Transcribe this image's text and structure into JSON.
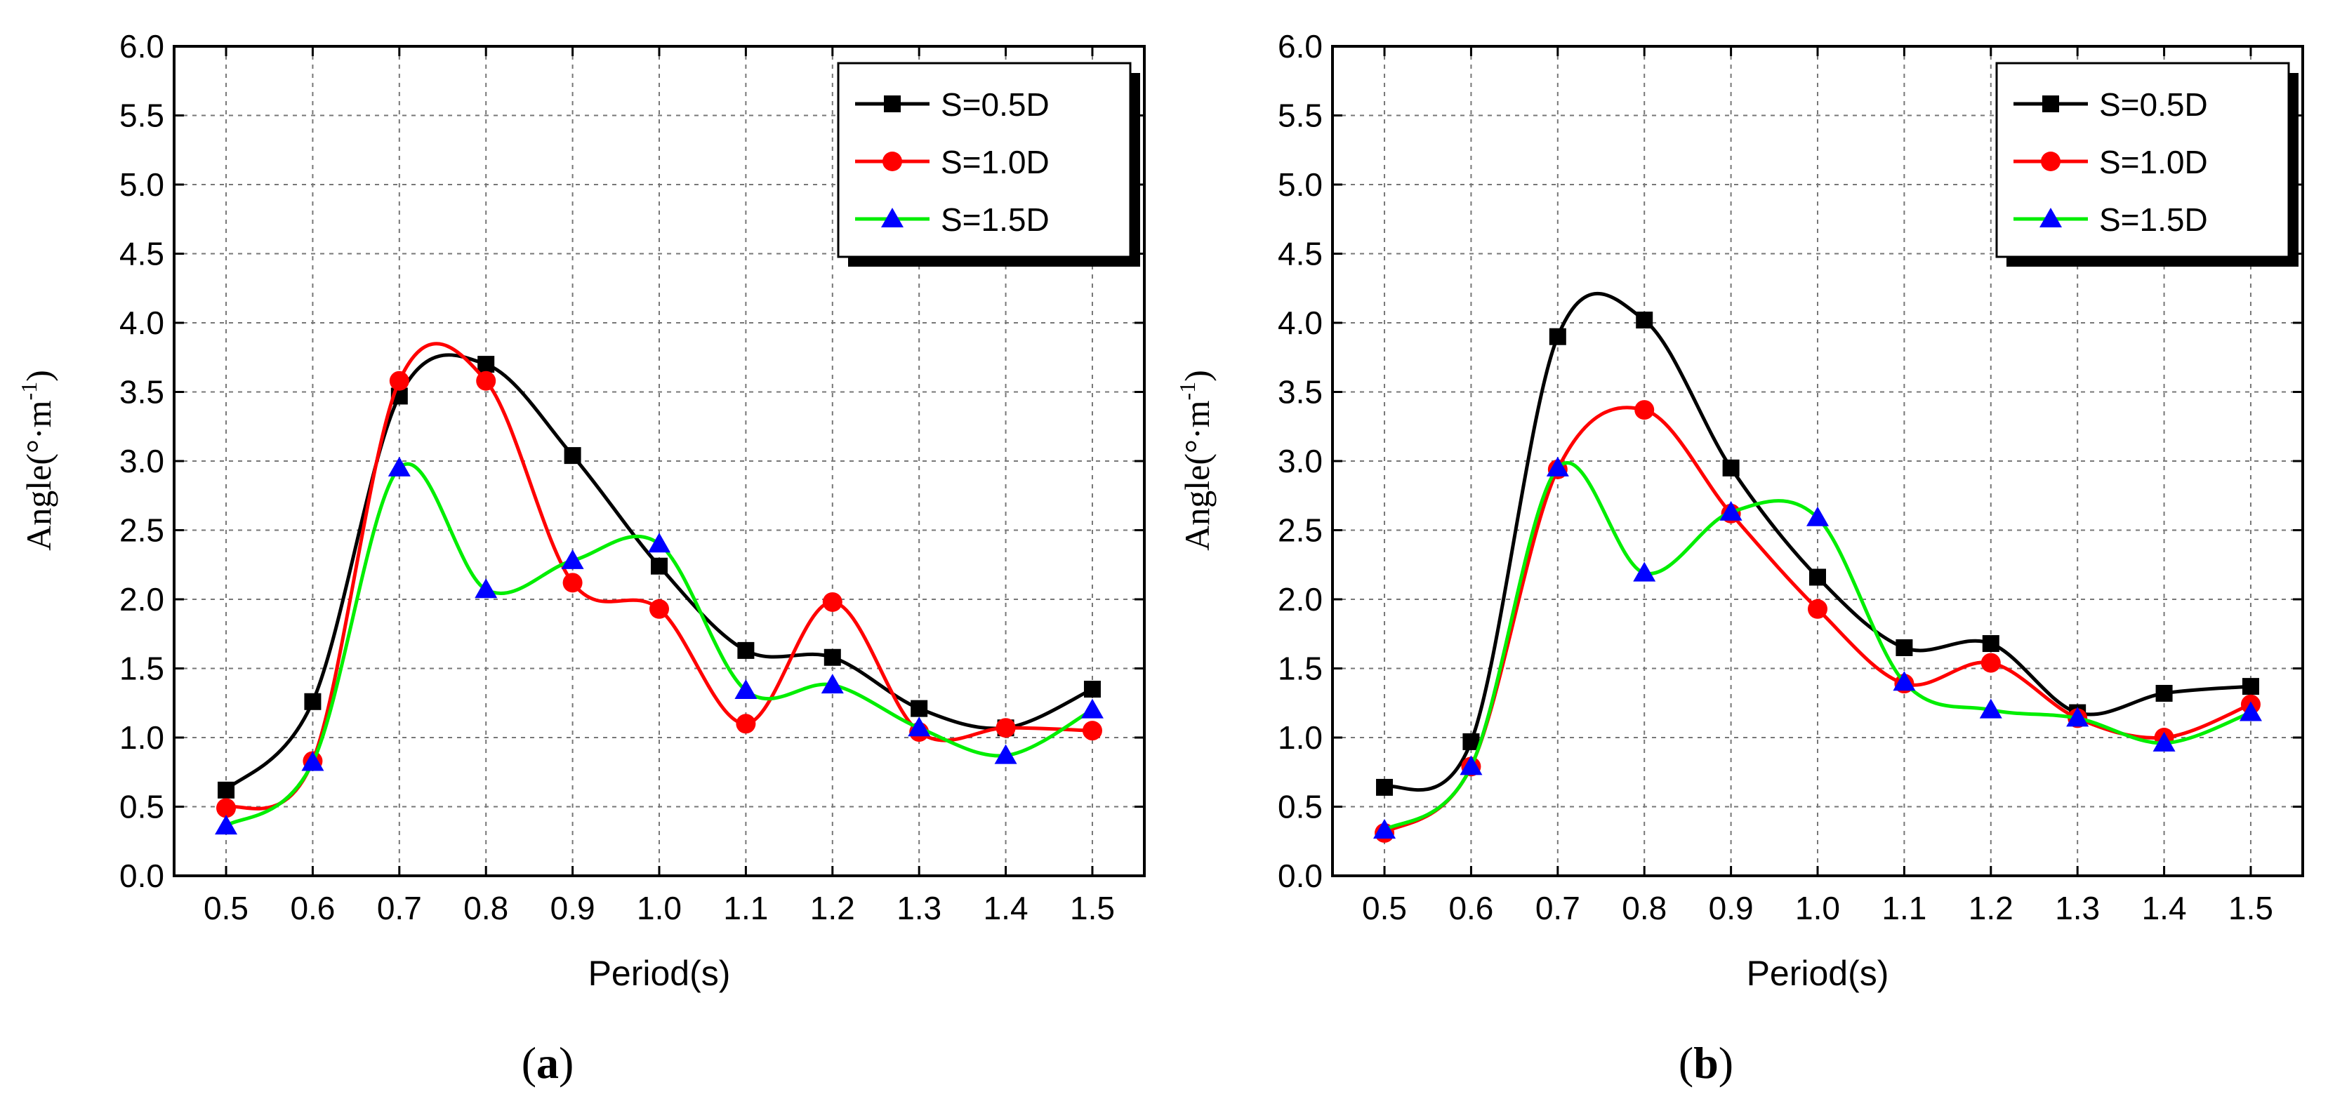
{
  "chart_data": [
    {
      "type": "line",
      "panel": "a",
      "caption_letter": "a",
      "xlabel": "Period(s)",
      "ylabel_base": "Angle(°·m",
      "ylabel_sup": "-1",
      "ylabel_close": ")",
      "x_ticks": [
        "0.5",
        "0.6",
        "0.7",
        "0.8",
        "0.9",
        "1.0",
        "1.1",
        "1.2",
        "1.3",
        "1.4",
        "1.5"
      ],
      "y_ticks": [
        "0.0",
        "0.5",
        "1.0",
        "1.5",
        "2.0",
        "2.5",
        "3.0",
        "3.5",
        "4.0",
        "4.5",
        "5.0",
        "5.5",
        "6.0"
      ],
      "xlim": [
        0.44,
        1.56
      ],
      "ylim": [
        0,
        6
      ],
      "grid": true,
      "legend_position": "top-right",
      "x": [
        0.5,
        0.6,
        0.7,
        0.8,
        0.9,
        1.0,
        1.1,
        1.2,
        1.3,
        1.4,
        1.5
      ],
      "series": [
        {
          "name": "S=0.5D",
          "color": "#000000",
          "marker": "square",
          "values": [
            0.62,
            1.26,
            3.47,
            3.7,
            3.04,
            2.24,
            1.63,
            1.58,
            1.21,
            1.07,
            1.35
          ]
        },
        {
          "name": "S=1.0D",
          "color": "#ff0000",
          "marker": "circle",
          "values": [
            0.49,
            0.83,
            3.58,
            3.58,
            2.12,
            1.93,
            1.1,
            1.98,
            1.04,
            1.07,
            1.05
          ]
        },
        {
          "name": "S=1.5D",
          "color": "#00ee00",
          "marker_color": "#0000ff",
          "marker": "triangle",
          "values": [
            0.36,
            0.82,
            2.95,
            2.07,
            2.28,
            2.4,
            1.34,
            1.38,
            1.07,
            0.87,
            1.2
          ]
        }
      ]
    },
    {
      "type": "line",
      "panel": "b",
      "caption_letter": "b",
      "xlabel": "Period(s)",
      "ylabel_base": "Angle(°·m",
      "ylabel_sup": "-1",
      "ylabel_close": ")",
      "x_ticks": [
        "0.5",
        "0.6",
        "0.7",
        "0.8",
        "0.9",
        "1.0",
        "1.1",
        "1.2",
        "1.3",
        "1.4",
        "1.5"
      ],
      "y_ticks": [
        "0.0",
        "0.5",
        "1.0",
        "1.5",
        "2.0",
        "2.5",
        "3.0",
        "3.5",
        "4.0",
        "4.5",
        "5.0",
        "5.5",
        "6.0"
      ],
      "xlim": [
        0.44,
        1.56
      ],
      "ylim": [
        0,
        6
      ],
      "grid": true,
      "legend_position": "top-right",
      "x": [
        0.5,
        0.6,
        0.7,
        0.8,
        0.9,
        1.0,
        1.1,
        1.2,
        1.3,
        1.4,
        1.5
      ],
      "series": [
        {
          "name": "S=0.5D",
          "color": "#000000",
          "marker": "square",
          "values": [
            0.64,
            0.97,
            3.9,
            4.02,
            2.95,
            2.16,
            1.65,
            1.68,
            1.18,
            1.32,
            1.37
          ]
        },
        {
          "name": "S=1.0D",
          "color": "#ff0000",
          "marker": "circle",
          "values": [
            0.31,
            0.79,
            2.94,
            3.37,
            2.62,
            1.93,
            1.39,
            1.54,
            1.14,
            1.0,
            1.24
          ]
        },
        {
          "name": "S=1.5D",
          "color": "#00ee00",
          "marker_color": "#0000ff",
          "marker": "triangle",
          "values": [
            0.33,
            0.79,
            2.95,
            2.19,
            2.63,
            2.59,
            1.4,
            1.2,
            1.14,
            0.96,
            1.18
          ]
        }
      ]
    }
  ]
}
